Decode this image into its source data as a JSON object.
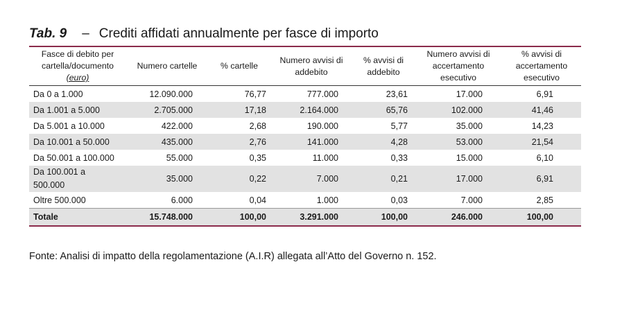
{
  "title": {
    "label": "Tab. 9",
    "dash": "–",
    "text": "Crediti affidati annualmente per fasce di importo"
  },
  "table": {
    "headers": {
      "col0_line1": "Fasce di debito per",
      "col0_line2": "cartella/documento",
      "col0_line3": "(euro)",
      "col1": "Numero cartelle",
      "col2": "% cartelle",
      "col3_line1": "Numero avvisi di",
      "col3_line2": "addebito",
      "col4_line1": "% avvisi di",
      "col4_line2": "addebito",
      "col5_line1": "Numero avvisi di",
      "col5_line2": "accertamento",
      "col5_line3": "esecutivo",
      "col6_line1": "% avvisi di",
      "col6_line2": "accertamento",
      "col6_line3": "esecutivo"
    },
    "rows": [
      {
        "label": "Da 0 a 1.000",
        "n_cartelle": "12.090.000",
        "pct_cartelle": "76,77",
        "n_addebito": "777.000",
        "pct_addebito": "23,61",
        "n_accert": "17.000",
        "pct_accert": "6,91"
      },
      {
        "label": "Da 1.001 a 5.000",
        "n_cartelle": "2.705.000",
        "pct_cartelle": "17,18",
        "n_addebito": "2.164.000",
        "pct_addebito": "65,76",
        "n_accert": "102.000",
        "pct_accert": "41,46"
      },
      {
        "label": "Da 5.001 a 10.000",
        "n_cartelle": "422.000",
        "pct_cartelle": "2,68",
        "n_addebito": "190.000",
        "pct_addebito": "5,77",
        "n_accert": "35.000",
        "pct_accert": "14,23"
      },
      {
        "label": "Da 10.001 a 50.000",
        "n_cartelle": "435.000",
        "pct_cartelle": "2,76",
        "n_addebito": "141.000",
        "pct_addebito": "4,28",
        "n_accert": "53.000",
        "pct_accert": "21,54"
      },
      {
        "label": "Da 50.001 a 100.000",
        "n_cartelle": "55.000",
        "pct_cartelle": "0,35",
        "n_addebito": "11.000",
        "pct_addebito": "0,33",
        "n_accert": "15.000",
        "pct_accert": "6,10"
      },
      {
        "label_line1": "Da 100.001 a",
        "label_line2": "500.000",
        "n_cartelle": "35.000",
        "pct_cartelle": "0,22",
        "n_addebito": "7.000",
        "pct_addebito": "0,21",
        "n_accert": "17.000",
        "pct_accert": "6,91"
      },
      {
        "label": "Oltre 500.000",
        "n_cartelle": "6.000",
        "pct_cartelle": "0,04",
        "n_addebito": "1.000",
        "pct_addebito": "0,03",
        "n_accert": "7.000",
        "pct_accert": "2,85"
      }
    ],
    "total": {
      "label": "Totale",
      "n_cartelle": "15.748.000",
      "pct_cartelle": "100,00",
      "n_addebito": "3.291.000",
      "pct_addebito": "100,00",
      "n_accert": "246.000",
      "pct_accert": "100,00"
    }
  },
  "source": "Fonte: Analisi di impatto della regolamentazione (A.I.R) allegata all’Atto del Governo n. 152."
}
